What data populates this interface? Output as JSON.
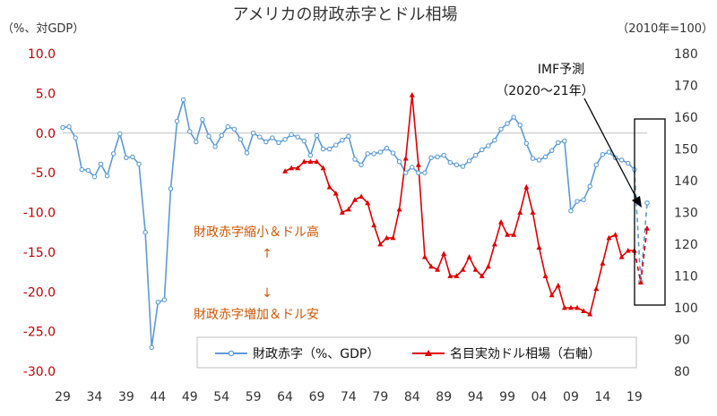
{
  "chart_data": {
    "type": "line",
    "title": "アメリカの財政赤字とドル相場",
    "left_unit": "（%、対GDP）",
    "right_unit": "（2010年=100）",
    "ylim": [
      -30,
      10
    ],
    "y2lim": [
      80,
      180
    ],
    "left_ticks": [
      "10.0",
      "5.0",
      "0.0",
      "-5.0",
      "-10.0",
      "-15.0",
      "-20.0",
      "-25.0",
      "-30.0"
    ],
    "right_ticks": [
      "180",
      "170",
      "160",
      "150",
      "140",
      "130",
      "120",
      "110",
      "100",
      "90",
      "80"
    ],
    "x_ticks": [
      "29",
      "34",
      "39",
      "44",
      "49",
      "54",
      "59",
      "64",
      "69",
      "74",
      "79",
      "84",
      "89",
      "94",
      "99",
      "04",
      "09",
      "14",
      "19"
    ],
    "series": [
      {
        "name": "財政赤字（%、GDP）",
        "axis": "left",
        "color": "#5b9bd5",
        "x": [
          1929,
          1930,
          1931,
          1932,
          1933,
          1934,
          1935,
          1936,
          1937,
          1938,
          1939,
          1940,
          1941,
          1942,
          1943,
          1944,
          1945,
          1946,
          1947,
          1948,
          1949,
          1950,
          1951,
          1952,
          1953,
          1954,
          1955,
          1956,
          1957,
          1958,
          1959,
          1960,
          1961,
          1962,
          1963,
          1964,
          1965,
          1966,
          1967,
          1968,
          1969,
          1970,
          1971,
          1972,
          1973,
          1974,
          1975,
          1976,
          1977,
          1978,
          1979,
          1980,
          1981,
          1982,
          1983,
          1984,
          1985,
          1986,
          1987,
          1988,
          1989,
          1990,
          1991,
          1992,
          1993,
          1994,
          1995,
          1996,
          1997,
          1998,
          1999,
          2000,
          2001,
          2002,
          2003,
          2004,
          2005,
          2006,
          2007,
          2008,
          2009,
          2010,
          2011,
          2012,
          2013,
          2014,
          2015,
          2016,
          2017,
          2018,
          2019
        ],
        "values": [
          0.7,
          0.8,
          -0.6,
          -4.6,
          -4.7,
          -5.5,
          -3.9,
          -5.4,
          -2.6,
          -0.1,
          -3.1,
          -3.0,
          -3.9,
          -12.5,
          -27.0,
          -21.3,
          -21.0,
          -7.0,
          1.5,
          4.2,
          0.2,
          -1.1,
          1.7,
          -0.4,
          -1.7,
          -0.3,
          0.8,
          0.5,
          -0.8,
          -2.5,
          0.0,
          -0.5,
          -1.1,
          -0.6,
          -1.2,
          -0.8,
          -0.2,
          -0.5,
          -1.0,
          -2.8,
          -0.3,
          -2.0,
          -2.0,
          -1.5,
          -0.9,
          -0.4,
          -3.3,
          -4.0,
          -2.6,
          -2.6,
          -2.4,
          -1.9,
          -2.5,
          -3.6,
          -5.0,
          -4.3,
          -5.0,
          -5.0,
          -3.1,
          -3.0,
          -2.8,
          -3.7,
          -4.0,
          -4.2,
          -3.5,
          -2.8,
          -2.1,
          -1.6,
          -0.9,
          0.5,
          1.2,
          2.0,
          1.0,
          -1.3,
          -3.2,
          -3.4,
          -3.0,
          -2.2,
          -1.2,
          -1.0,
          -9.8,
          -8.6,
          -8.4,
          -6.7,
          -4.0,
          -2.7,
          -2.4,
          -3.1,
          -3.4,
          -3.8,
          -4.6
        ],
        "forecast": {
          "x": [
            2019,
            2020,
            2021
          ],
          "values": [
            -4.6,
            -18.7,
            -8.8
          ]
        }
      },
      {
        "name": "名目実効ドル相場（右軸）",
        "axis": "right",
        "color": "#e00000",
        "x": [
          1964,
          1965,
          1966,
          1967,
          1968,
          1969,
          1970,
          1971,
          1972,
          1973,
          1974,
          1975,
          1976,
          1977,
          1978,
          1979,
          1980,
          1981,
          1982,
          1983,
          1984,
          1985,
          1986,
          1987,
          1988,
          1989,
          1990,
          1991,
          1992,
          1993,
          1994,
          1995,
          1996,
          1997,
          1998,
          1999,
          2000,
          2001,
          2002,
          2003,
          2004,
          2005,
          2006,
          2007,
          2008,
          2009,
          2010,
          2011,
          2012,
          2013,
          2014,
          2015,
          2016,
          2017,
          2018,
          2019
        ],
        "values": [
          143,
          144,
          144,
          146,
          146,
          146,
          144,
          138,
          136,
          130,
          131,
          134,
          135,
          133,
          126,
          120,
          122,
          122,
          131,
          147,
          167,
          145,
          116,
          113,
          112,
          117,
          110,
          110,
          112,
          116,
          112,
          110,
          113,
          120,
          127,
          123,
          123,
          130,
          138,
          130,
          119,
          110,
          104,
          107,
          100,
          100,
          100,
          99,
          98,
          106,
          114,
          122,
          123,
          116,
          118,
          118
        ],
        "forecast": {
          "x": [
            2019,
            2020,
            2021
          ],
          "values": [
            118,
            108,
            125
          ]
        }
      }
    ],
    "forecast_label_1": "IMF予測",
    "forecast_label_2": "（2020～21年）",
    "annotation_up": "財政赤字縮小＆ドル高",
    "annotation_up_arrow": "↑",
    "annotation_down_arrow": "↓",
    "annotation_down": "財政赤字増加＆ドル安",
    "legend_position": "bottom-center"
  }
}
